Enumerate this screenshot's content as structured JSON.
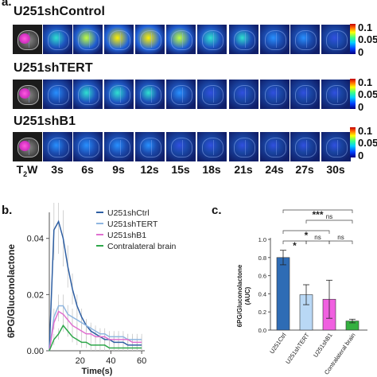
{
  "panels": {
    "a": "a.",
    "b": "b.",
    "c": "c."
  },
  "imaging": {
    "rows": [
      {
        "title": "U251shControl",
        "intensities": [
          0.55,
          0.8,
          0.95,
          1.0,
          0.85,
          0.6,
          0.45,
          0.35,
          0.3,
          0.25
        ]
      },
      {
        "title": "U251shTERT",
        "intensities": [
          0.35,
          0.55,
          0.6,
          0.45,
          0.35,
          0.25,
          0.2,
          0.18,
          0.15,
          0.12
        ]
      },
      {
        "title": "U251shB1",
        "intensities": [
          0.3,
          0.4,
          0.35,
          0.28,
          0.22,
          0.18,
          0.15,
          0.12,
          0.1,
          0.1
        ]
      }
    ],
    "time_labels": [
      "T",
      "3s",
      "6s",
      "9s",
      "12s",
      "15s",
      "18s",
      "21s",
      "24s",
      "27s",
      "30s"
    ],
    "t2w_sub": "2",
    "t2w_suffix": "W",
    "colorbar_ticks": [
      "0.1",
      "0.05",
      "0"
    ]
  },
  "chart_data": [
    {
      "type": "line",
      "xlabel": "Time(s)",
      "ylabel": "6PG/Gluconolactone",
      "xlim": [
        0,
        62
      ],
      "ylim": [
        0,
        0.047
      ],
      "x_ticks": [
        "20",
        "40",
        "60"
      ],
      "y_ticks": [
        "0.00",
        "0.02",
        "0.04"
      ],
      "x": [
        0,
        3,
        6,
        9,
        12,
        15,
        18,
        21,
        24,
        27,
        30,
        33,
        36,
        39,
        42,
        45,
        48,
        51,
        54,
        57,
        60
      ],
      "series": [
        {
          "name": "U251shCtrl",
          "color": "#2e5fa3",
          "values": [
            0.0,
            0.043,
            0.046,
            0.04,
            0.03,
            0.022,
            0.016,
            0.012,
            0.009,
            0.007,
            0.006,
            0.005,
            0.004,
            0.004,
            0.003,
            0.003,
            0.003,
            0.002,
            0.002,
            0.002,
            0.002
          ]
        },
        {
          "name": "U251shTERT",
          "color": "#8fb6e0",
          "values": [
            0.0,
            0.012,
            0.016,
            0.016,
            0.013,
            0.012,
            0.011,
            0.01,
            0.009,
            0.008,
            0.007,
            0.006,
            0.006,
            0.005,
            0.005,
            0.005,
            0.005,
            0.004,
            0.004,
            0.004,
            0.004
          ]
        },
        {
          "name": "U251shB1",
          "color": "#e070d0",
          "values": [
            0.0,
            0.01,
            0.014,
            0.013,
            0.011,
            0.009,
            0.008,
            0.007,
            0.006,
            0.006,
            0.005,
            0.005,
            0.005,
            0.004,
            0.004,
            0.004,
            0.004,
            0.004,
            0.003,
            0.003,
            0.003
          ]
        },
        {
          "name": "Contralateral brain",
          "color": "#2ea84a",
          "values": [
            0.0,
            0.004,
            0.006,
            0.009,
            0.007,
            0.005,
            0.004,
            0.003,
            0.003,
            0.002,
            0.002,
            0.002,
            0.002,
            0.001,
            0.001,
            0.001,
            0.001,
            0.001,
            0.001,
            0.001,
            0.001
          ]
        }
      ]
    },
    {
      "type": "bar",
      "ylabel": "6PG/Gluconolactone\n(AUC)",
      "categories": [
        "U251Ctrl",
        "U251shTERT",
        "U251shB1",
        "Contralateral brain"
      ],
      "values": [
        0.8,
        0.39,
        0.34,
        0.1
      ],
      "errors": [
        0.08,
        0.11,
        0.21,
        0.02
      ],
      "colors": [
        "#2e6cb5",
        "#b9d8f5",
        "#f060e0",
        "#34b040"
      ],
      "ylim": [
        0,
        1.0
      ],
      "y_ticks": [
        "0.0",
        "0.2",
        "0.4",
        "0.6",
        "0.8",
        "1.0"
      ],
      "significance": [
        {
          "from": 0,
          "to": 3,
          "label": "***",
          "level": 3
        },
        {
          "from": 1,
          "to": 3,
          "label": "ns",
          "level": 2
        },
        {
          "from": 0,
          "to": 2,
          "label": "*",
          "level": 1
        },
        {
          "from": 0,
          "to": 1,
          "label": "*",
          "level": 0
        },
        {
          "from": 1,
          "to": 2,
          "label": "ns",
          "level": 0
        },
        {
          "from": 2,
          "to": 3,
          "label": "ns",
          "level": 0
        }
      ]
    }
  ]
}
